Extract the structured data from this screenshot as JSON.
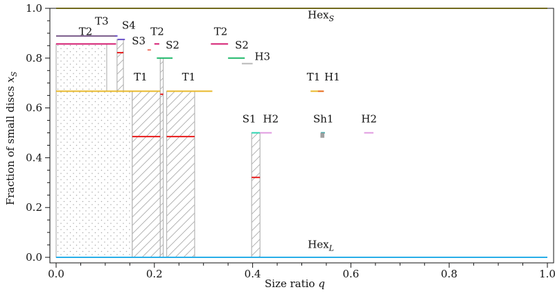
{
  "chart_data": {
    "type": "line",
    "title": "",
    "xlabel": "Size ratio",
    "xlabel_var": "q",
    "ylabel": "Fraction of small discs",
    "ylabel_var": "x",
    "ylabel_sub": "S",
    "xlim": [
      0.0,
      1.0
    ],
    "ylim": [
      0.0,
      1.0
    ],
    "x_ticks": [
      0.0,
      0.2,
      0.4,
      0.6,
      0.8,
      1.0
    ],
    "x_tick_labels": [
      "0.0",
      "0.2",
      "0.4",
      "0.6",
      "0.8",
      "1.0"
    ],
    "y_ticks": [
      0.0,
      0.2,
      0.4,
      0.6,
      0.8,
      1.0
    ],
    "y_tick_labels": [
      "0.0",
      "0.2",
      "0.4",
      "0.6",
      "0.8",
      "1.0"
    ],
    "grid": false,
    "colors": {
      "hexS": "#d4c42a",
      "hexL": "#29aee8",
      "T1": "#e8b82a",
      "T2": "#d41e72",
      "T3": "#7a5a8a",
      "S1": "#2ad4b0",
      "S2": "#1fb86a",
      "S3": "#f07a6a",
      "S4": "#6a50c8",
      "H1": "#e86a1a",
      "H2": "#e09ae0",
      "H3": "#b8b8b8",
      "Sh1": "#1aa0a0",
      "Sh1_marker": "#a0a0a0",
      "coexist": "#e81a1a",
      "region_edge": "#b4b4b4",
      "region_fill": "#ffffff"
    },
    "regions": [
      {
        "pattern": "dots",
        "x0": 0.0,
        "x1": 0.155,
        "y0": 0.0,
        "y1": 0.667
      },
      {
        "pattern": "dots",
        "x0": 0.0,
        "x1": 0.103,
        "y0": 0.667,
        "y1": 0.857
      },
      {
        "pattern": "hatch",
        "x0": 0.155,
        "x1": 0.212,
        "y0": 0.0,
        "y1": 0.667
      },
      {
        "pattern": "hatch",
        "x0": 0.124,
        "x1": 0.137,
        "y0": 0.667,
        "y1": 0.875
      },
      {
        "pattern": "hatch",
        "x0": 0.212,
        "x1": 0.218,
        "y0": 0.0,
        "y1": 0.8
      },
      {
        "pattern": "hatch",
        "x0": 0.225,
        "x1": 0.282,
        "y0": 0.0,
        "y1": 0.667
      },
      {
        "pattern": "hatch",
        "x0": 0.398,
        "x1": 0.415,
        "y0": 0.0,
        "y1": 0.5
      }
    ],
    "series": [
      {
        "name": "Hex_S",
        "color_key": "hexS",
        "segments": [
          [
            0.0,
            1.0,
            1.0
          ]
        ],
        "width": 2
      },
      {
        "name": "Hex_L",
        "color_key": "hexL",
        "segments": [
          [
            0.0,
            1.0,
            0.0
          ]
        ],
        "width": 2
      },
      {
        "name": "T1",
        "color_key": "T1",
        "segments": [
          [
            0.0,
            0.212,
            0.667
          ],
          [
            0.225,
            0.318,
            0.667
          ],
          [
            0.518,
            0.542,
            0.667
          ]
        ],
        "width": 2
      },
      {
        "name": "T2",
        "color_key": "T2",
        "segments": [
          [
            0.0,
            0.122,
            0.857
          ],
          [
            0.2,
            0.21,
            0.857
          ],
          [
            0.315,
            0.35,
            0.857
          ]
        ],
        "width": 2
      },
      {
        "name": "T3",
        "color_key": "T3",
        "segments": [
          [
            0.0,
            0.122,
            0.889
          ]
        ],
        "width": 2
      },
      {
        "name": "S1",
        "color_key": "S1",
        "segments": [
          [
            0.398,
            0.415,
            0.5
          ]
        ],
        "width": 2
      },
      {
        "name": "S2",
        "color_key": "S2",
        "segments": [
          [
            0.205,
            0.237,
            0.8
          ],
          [
            0.35,
            0.384,
            0.8
          ]
        ],
        "width": 2
      },
      {
        "name": "S3",
        "color_key": "S3",
        "segments": [
          [
            0.186,
            0.193,
            0.833
          ]
        ],
        "width": 2
      },
      {
        "name": "S4",
        "color_key": "S4",
        "segments": [
          [
            0.12,
            0.125,
            0.889
          ],
          [
            0.125,
            0.14,
            0.875
          ]
        ],
        "width": 2
      },
      {
        "name": "H1",
        "color_key": "H1",
        "segments": [
          [
            0.533,
            0.545,
            0.667
          ]
        ],
        "width": 2
      },
      {
        "name": "H2",
        "color_key": "H2",
        "segments": [
          [
            0.415,
            0.439,
            0.5
          ],
          [
            0.627,
            0.646,
            0.5
          ]
        ],
        "width": 2
      },
      {
        "name": "H3",
        "color_key": "H3",
        "segments": [
          [
            0.378,
            0.4,
            0.778
          ]
        ],
        "width": 2
      },
      {
        "name": "Sh1",
        "color_key": "Sh1",
        "segments": [
          [
            0.539,
            0.547,
            0.5
          ]
        ],
        "width": 2
      }
    ],
    "coexistence": [
      {
        "x0": 0.124,
        "x1": 0.137,
        "y": 0.822
      },
      {
        "x0": 0.155,
        "x1": 0.212,
        "y": 0.485
      },
      {
        "x0": 0.212,
        "x1": 0.218,
        "y": 0.655
      },
      {
        "x0": 0.225,
        "x1": 0.282,
        "y": 0.485
      },
      {
        "x0": 0.398,
        "x1": 0.415,
        "y": 0.321
      }
    ],
    "markers": [
      {
        "name": "Sh1-marker",
        "color_key": "Sh1_marker",
        "x0": 0.538,
        "x1": 0.546,
        "y0": 0.48,
        "y1": 0.5
      }
    ],
    "annotations": [
      {
        "id": "hexS",
        "main": "Hex",
        "sub": "S",
        "x": 0.539,
        "y": 0.96
      },
      {
        "id": "hexL",
        "main": "Hex",
        "sub": "L",
        "x": 0.539,
        "y": 0.037
      },
      {
        "id": "T3",
        "main": "T3",
        "sub": "",
        "x": 0.093,
        "y": 0.935
      },
      {
        "id": "S4",
        "main": "S4",
        "sub": "",
        "x": 0.148,
        "y": 0.918
      },
      {
        "id": "T2a",
        "main": "T2",
        "sub": "",
        "x": 0.06,
        "y": 0.893
      },
      {
        "id": "T2b",
        "main": "T2",
        "sub": "",
        "x": 0.206,
        "y": 0.893
      },
      {
        "id": "T2c",
        "main": "T2",
        "sub": "",
        "x": 0.335,
        "y": 0.893
      },
      {
        "id": "S3",
        "main": "S3",
        "sub": "",
        "x": 0.168,
        "y": 0.855
      },
      {
        "id": "S2a",
        "main": "S2",
        "sub": "",
        "x": 0.237,
        "y": 0.838
      },
      {
        "id": "S2b",
        "main": "S2",
        "sub": "",
        "x": 0.378,
        "y": 0.838
      },
      {
        "id": "H3",
        "main": "H3",
        "sub": "",
        "x": 0.42,
        "y": 0.792
      },
      {
        "id": "T1a",
        "main": "T1",
        "sub": "",
        "x": 0.172,
        "y": 0.71
      },
      {
        "id": "T1b",
        "main": "T1",
        "sub": "",
        "x": 0.27,
        "y": 0.71
      },
      {
        "id": "T1c",
        "main": "T1",
        "sub": "",
        "x": 0.524,
        "y": 0.71
      },
      {
        "id": "H1",
        "main": "H1",
        "sub": "",
        "x": 0.562,
        "y": 0.71
      },
      {
        "id": "S1",
        "main": "S1",
        "sub": "",
        "x": 0.393,
        "y": 0.542
      },
      {
        "id": "H2a",
        "main": "H2",
        "sub": "",
        "x": 0.437,
        "y": 0.542
      },
      {
        "id": "Sh1",
        "main": "Sh1",
        "sub": "",
        "x": 0.544,
        "y": 0.542
      },
      {
        "id": "H2b",
        "main": "H2",
        "sub": "",
        "x": 0.637,
        "y": 0.542
      }
    ]
  }
}
